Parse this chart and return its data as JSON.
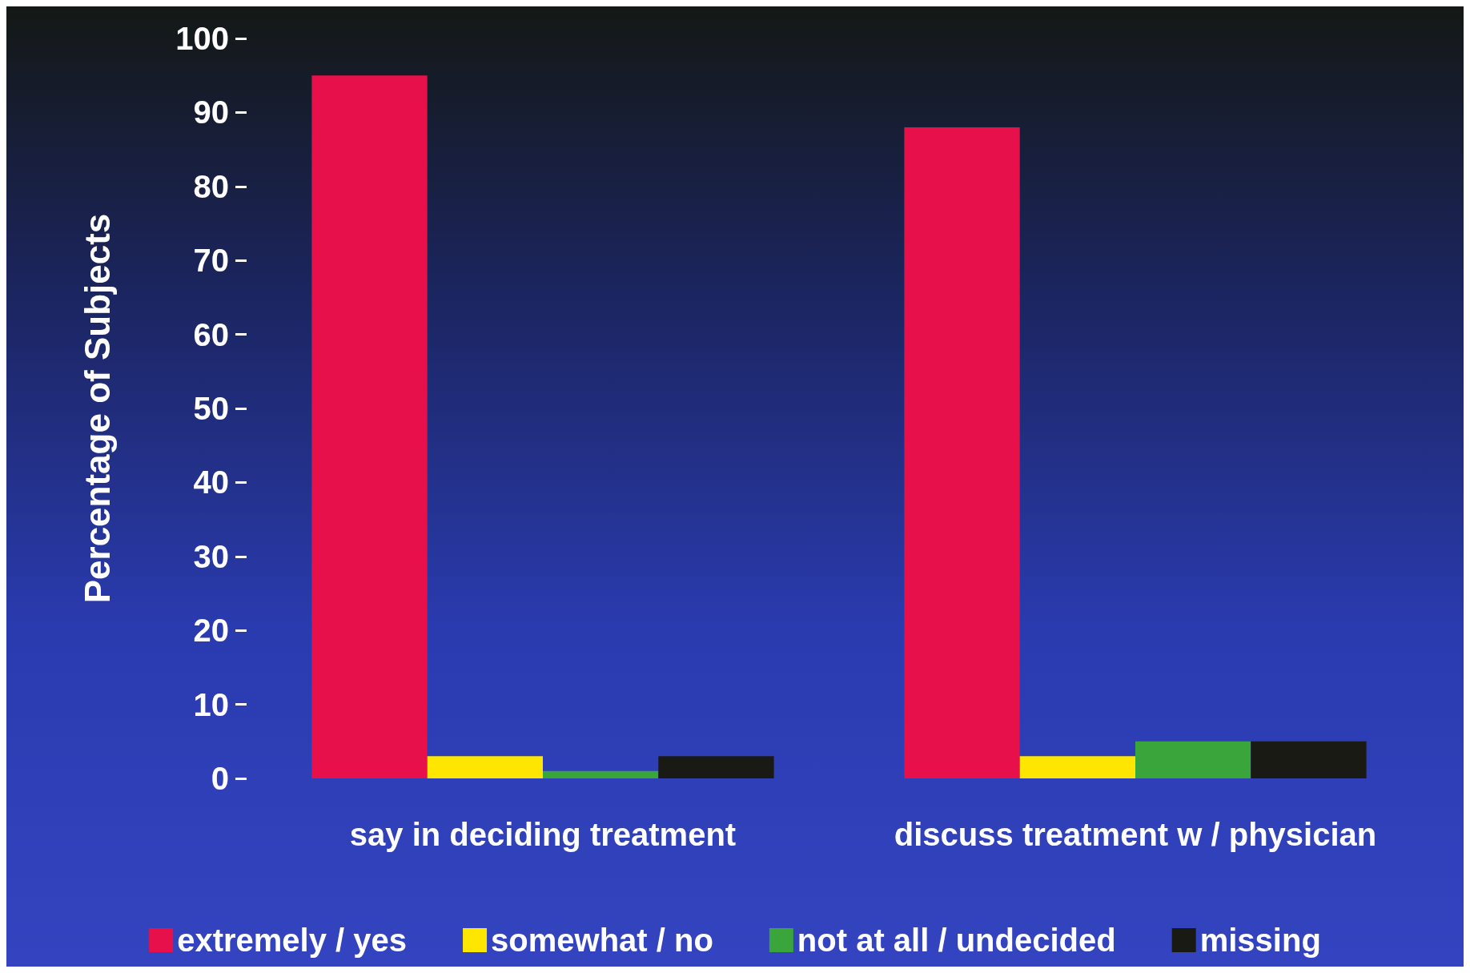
{
  "chart_data": {
    "type": "bar",
    "ylabel": "Percentage of Subjects",
    "categories": [
      "say in deciding treatment",
      "discuss treatment w / physician"
    ],
    "series": [
      {
        "name": "extremely / yes",
        "color": "#e8104a",
        "values": [
          95,
          88
        ]
      },
      {
        "name": "somewhat / no",
        "color": "#ffe600",
        "values": [
          3,
          3
        ]
      },
      {
        "name": "not at all / undecided",
        "color": "#3aa53a",
        "values": [
          1,
          5
        ]
      },
      {
        "name": "missing",
        "color": "#1a1a14",
        "values": [
          3,
          5
        ]
      }
    ],
    "ylim": [
      0,
      100
    ],
    "yticks": [
      0,
      10,
      20,
      30,
      40,
      50,
      60,
      70,
      80,
      90,
      100
    ],
    "grid": false,
    "legend": "bottom"
  }
}
